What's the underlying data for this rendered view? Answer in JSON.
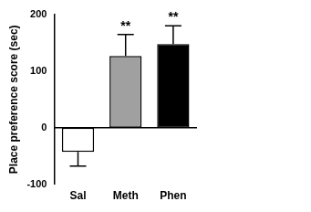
{
  "chart_data": {
    "type": "bar",
    "y_label": "Place preference score (sec)",
    "categories": [
      "Sal",
      "Meth",
      "Phen"
    ],
    "values": [
      -43,
      127,
      148
    ],
    "errors": [
      25,
      38,
      32
    ],
    "colors": [
      "#ffffff",
      "#a0a0a0",
      "#000000"
    ],
    "annotations": [
      {
        "category": "Meth",
        "text": "**"
      },
      {
        "category": "Phen",
        "text": "**"
      }
    ],
    "ylim": [
      -100,
      200
    ],
    "yticks": [
      -100,
      0,
      100,
      200
    ],
    "grid": false
  }
}
